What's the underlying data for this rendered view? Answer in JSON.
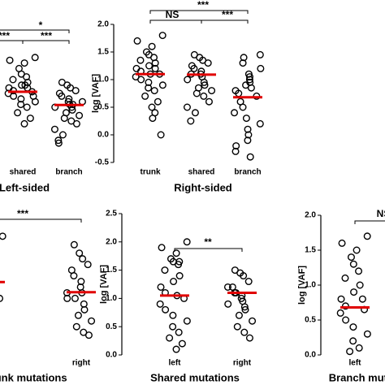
{
  "chart_data": [
    {
      "type": "dot",
      "title": "Left-sided",
      "categories": [
        "shared",
        "branch"
      ],
      "values": [
        [
          1.4,
          1.35,
          1.3,
          1.2,
          1.1,
          1.05,
          1.0,
          0.95,
          0.9,
          0.85,
          0.8,
          0.78,
          0.75,
          0.7,
          0.65,
          0.6,
          0.55,
          0.5,
          0.4,
          0.3,
          0.2,
          0.85,
          0.9,
          0.7
        ],
        [
          0.95,
          0.9,
          0.85,
          0.8,
          0.75,
          0.7,
          0.65,
          0.6,
          0.55,
          0.5,
          0.5,
          0.45,
          0.4,
          0.35,
          0.3,
          0.25,
          0.2,
          0.1,
          0.0,
          -0.1,
          -0.15,
          0.6,
          0.55
        ]
      ],
      "means": [
        0.78,
        0.54
      ],
      "ylim": [
        -0.5,
        2.0
      ],
      "annotations": [
        "*",
        "***",
        "***"
      ],
      "color": "#e00000"
    },
    {
      "type": "dot",
      "title": "Right-sided",
      "ylabel": "log [VAF]",
      "categories": [
        "trunk",
        "shared",
        "branch"
      ],
      "values": [
        [
          1.8,
          1.7,
          1.6,
          1.5,
          1.45,
          1.4,
          1.35,
          1.3,
          1.25,
          1.2,
          1.15,
          1.1,
          1.05,
          1.0,
          0.95,
          0.9,
          0.85,
          0.8,
          0.7,
          0.6,
          0.5,
          0.4,
          0.3,
          0.0,
          1.2,
          1.1
        ],
        [
          1.45,
          1.4,
          1.35,
          1.3,
          1.25,
          1.2,
          1.15,
          1.1,
          1.05,
          1.0,
          0.95,
          0.9,
          0.85,
          0.8,
          0.75,
          0.7,
          0.6,
          0.5,
          0.4,
          0.25,
          1.1
        ],
        [
          1.45,
          1.4,
          1.3,
          1.2,
          1.1,
          1.05,
          1.0,
          0.95,
          0.9,
          0.85,
          0.8,
          0.75,
          0.7,
          0.6,
          0.5,
          0.4,
          0.3,
          0.2,
          0.1,
          0.0,
          -0.1,
          -0.2,
          -0.3,
          -0.4
        ]
      ],
      "means": [
        1.1,
        1.09,
        0.68
      ],
      "ylim": [
        -0.5,
        2.0
      ],
      "yticks": [
        {
          "value": 2.0,
          "label": "2.0"
        },
        1.5,
        {
          "value": 1.0,
          "label": "1.0"
        },
        0.5,
        {
          "value": 0.0,
          "label": "0.0"
        },
        -0.5
      ],
      "annotations": [
        "***",
        "NS",
        "***"
      ],
      "color": "#e00000"
    },
    {
      "type": "dot",
      "title": "Trunk mutations",
      "categories": [
        null,
        "right"
      ],
      "values": [
        [
          2.1,
          2.0,
          1.9,
          1.8,
          1.7,
          1.6,
          1.5,
          1.4,
          1.3,
          1.2,
          1.1,
          1.0,
          0.9,
          0.8,
          0.7
        ],
        [
          1.95,
          1.8,
          1.7,
          1.6,
          1.5,
          1.4,
          1.3,
          1.2,
          1.1,
          1.0,
          0.9,
          0.8,
          0.7,
          0.6,
          0.5,
          0.4,
          0.35,
          1.1,
          1.0
        ]
      ],
      "means": [
        1.29,
        1.11
      ],
      "ylim": [
        0.0,
        2.5
      ],
      "annotations": [
        "***"
      ],
      "color": "#e00000"
    },
    {
      "type": "dot",
      "title": "Shared mutations",
      "ylabel": "log [VAF]",
      "categories": [
        "left",
        "right"
      ],
      "values": [
        [
          2.0,
          1.9,
          1.8,
          1.7,
          1.65,
          1.6,
          1.5,
          1.4,
          1.3,
          1.2,
          1.1,
          1.0,
          0.9,
          0.8,
          0.7,
          0.6,
          0.5,
          0.4,
          0.3,
          0.2,
          0.1,
          1.65,
          1.05
        ],
        [
          1.5,
          1.45,
          1.4,
          1.3,
          1.2,
          1.1,
          1.05,
          1.0,
          0.95,
          0.9,
          0.85,
          0.8,
          0.7,
          0.6,
          0.5,
          0.4,
          0.3,
          1.2,
          1.1
        ]
      ],
      "means": [
        1.05,
        1.1
      ],
      "ylim": [
        0.0,
        2.5
      ],
      "yticks": [
        {
          "value": 0.0,
          "label": "0.0"
        },
        0.5,
        {
          "value": 1.0,
          "label": "1.0"
        },
        1.5,
        {
          "value": 2.0,
          "label": "2.0"
        },
        2.5
      ],
      "annotations": [
        "**"
      ],
      "color": "#e00000"
    },
    {
      "type": "dot",
      "title": "Branch mutations",
      "ylabel": "log [VAF]",
      "categories": [
        "left"
      ],
      "values": [
        [
          1.7,
          1.6,
          1.5,
          1.4,
          1.3,
          1.2,
          1.1,
          1.0,
          0.9,
          0.8,
          0.7,
          0.65,
          0.6,
          0.5,
          0.4,
          0.3,
          0.2,
          0.1,
          0.05,
          0.8
        ]
      ],
      "means": [
        0.68
      ],
      "ylim": [
        0.0,
        2.0
      ],
      "yticks": [
        {
          "value": 0.0,
          "label": "0.0"
        },
        0.5,
        {
          "value": 1.0,
          "label": "1.0"
        },
        1.5,
        {
          "value": 2.0,
          "label": "2.0"
        }
      ],
      "annotations": [
        "NS"
      ],
      "color": "#e00000"
    }
  ]
}
